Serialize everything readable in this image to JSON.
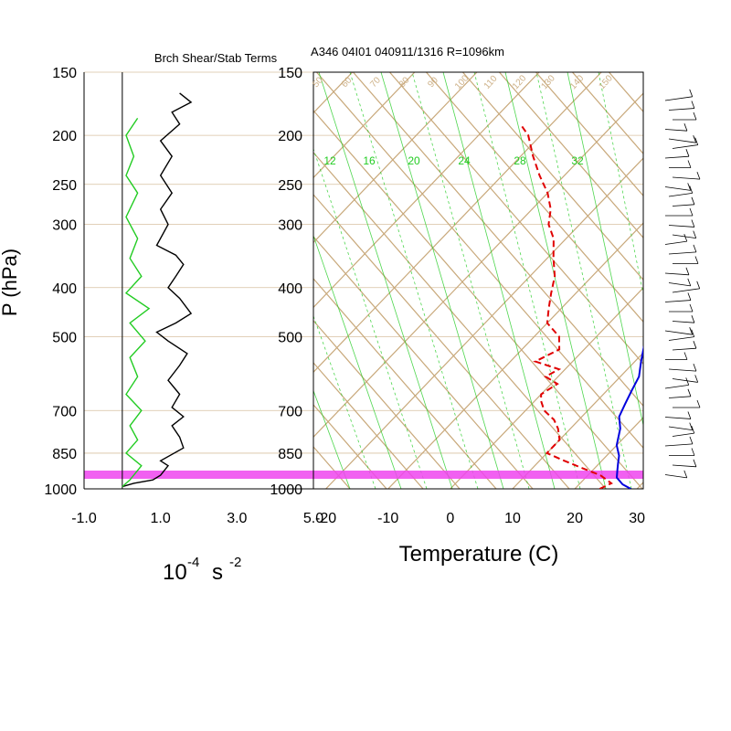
{
  "header": {
    "left_title": "Brch Shear/Stab Terms",
    "right_title": "A346 04I01 040911/1316 R=1096km"
  },
  "y_axis": {
    "label": "P (hPa)",
    "ticks": [
      150,
      200,
      250,
      300,
      400,
      500,
      700,
      850,
      1000
    ],
    "range": [
      1000,
      150
    ],
    "scale": "log"
  },
  "colors": {
    "grid": "#c8a87a",
    "temperature": "#e00000",
    "dewpoint_profile": "#0000dd",
    "mixing_ratio": "#22cc22",
    "bri_richardson": "#000000",
    "bri_shear": "#22cc22",
    "surface_band": "#ee44ee",
    "wind_barb": "#000000"
  },
  "left_panel": {
    "x_unit_label": "10",
    "x_unit_exp": "-4",
    "x_unit_s": "s",
    "x_unit_s_exp": "-2",
    "x_ticks": [
      "-1.0",
      "1.0",
      "3.0",
      "5.0"
    ]
  },
  "right_panel": {
    "x_axis_label": "Temperature (C)",
    "x_ticks": [
      "-20",
      "-10",
      "0",
      "10",
      "20",
      "30"
    ],
    "mixing_ratio_labels": [
      "12",
      "16",
      "20",
      "24",
      "28",
      "32"
    ],
    "isotherm_top_labels": [
      "50",
      "60",
      "70",
      "80",
      "90",
      "100",
      "110",
      "120",
      "130",
      "140",
      "150"
    ]
  },
  "chart_data": [
    {
      "type": "line",
      "title": "Brch Shear/Stab Terms",
      "xlabel": "10-4 s -2",
      "ylabel": "P (hPa)",
      "xlim": [
        -1.0,
        5.0
      ],
      "ylim": [
        1000,
        150
      ],
      "series": [
        {
          "points": [
            [
              0.0,
              990
            ],
            [
              0.3,
              975
            ],
            [
              0.8,
              960
            ],
            [
              1.0,
              940
            ],
            [
              1.2,
              900
            ],
            [
              1.0,
              880
            ],
            [
              1.6,
              830
            ],
            [
              1.5,
              790
            ],
            [
              1.3,
              750
            ],
            [
              1.6,
              720
            ],
            [
              1.3,
              690
            ],
            [
              1.5,
              650
            ],
            [
              1.2,
              610
            ],
            [
              1.5,
              570
            ],
            [
              1.7,
              540
            ],
            [
              1.2,
              510
            ],
            [
              0.9,
              490
            ],
            [
              1.4,
              470
            ],
            [
              1.8,
              450
            ],
            [
              1.5,
              420
            ],
            [
              1.2,
              400
            ],
            [
              1.4,
              380
            ],
            [
              1.6,
              360
            ],
            [
              1.4,
              345
            ],
            [
              0.9,
              330
            ],
            [
              1.2,
              300
            ],
            [
              1.0,
              280
            ],
            [
              1.3,
              260
            ],
            [
              1.0,
              240
            ],
            [
              1.3,
              220
            ],
            [
              1.0,
              205
            ],
            [
              1.5,
              190
            ],
            [
              1.3,
              180
            ],
            [
              1.8,
              172
            ],
            [
              1.5,
              165
            ]
          ]
        },
        {
          "points": [
            [
              0.0,
              990
            ],
            [
              0.2,
              960
            ],
            [
              0.5,
              900
            ],
            [
              0.1,
              850
            ],
            [
              0.4,
              800
            ],
            [
              0.2,
              750
            ],
            [
              0.5,
              700
            ],
            [
              0.1,
              650
            ],
            [
              0.4,
              600
            ],
            [
              0.2,
              550
            ],
            [
              0.6,
              510
            ],
            [
              0.2,
              470
            ],
            [
              0.7,
              440
            ],
            [
              0.1,
              410
            ],
            [
              0.5,
              380
            ],
            [
              0.2,
              350
            ],
            [
              0.4,
              320
            ],
            [
              0.1,
              290
            ],
            [
              0.4,
              260
            ],
            [
              0.1,
              240
            ],
            [
              0.3,
              220
            ],
            [
              0.1,
              200
            ],
            [
              0.4,
              185
            ]
          ]
        }
      ]
    },
    {
      "type": "line",
      "title": "A346 04I01 040911/1316 R=1096km",
      "xlabel": "Temperature (C)",
      "ylabel": "P (hPa)",
      "xlim": [
        -22,
        31
      ],
      "ylim": [
        1000,
        150
      ],
      "skew_per_decade_C": 78,
      "series": [
        {
          "points": [
            [
              29,
              1000
            ],
            [
              27,
              980
            ],
            [
              25,
              950
            ],
            [
              24,
              920
            ],
            [
              23,
              890
            ],
            [
              22,
              860
            ],
            [
              20,
              820
            ],
            [
              18,
              760
            ],
            [
              16,
              720
            ],
            [
              15,
              680
            ],
            [
              14,
              640
            ],
            [
              13,
              600
            ],
            [
              11,
              560
            ],
            [
              9,
              520
            ],
            [
              8,
              480
            ],
            [
              7,
              440
            ],
            [
              6,
              410
            ],
            [
              4,
              380
            ],
            [
              3,
              350
            ],
            [
              0,
              320
            ],
            [
              -2,
              290
            ],
            [
              -5,
              260
            ],
            [
              -8,
              240
            ],
            [
              -11,
              220
            ],
            [
              -14,
              200
            ],
            [
              -18,
              180
            ],
            [
              -20,
              170
            ]
          ]
        },
        {
          "points": [
            [
              24,
              1000
            ],
            [
              25,
              975
            ],
            [
              22,
              940
            ],
            [
              18,
              910
            ],
            [
              14,
              880
            ],
            [
              10,
              850
            ],
            [
              10,
              800
            ],
            [
              8,
              760
            ],
            [
              6,
              730
            ],
            [
              3,
              700
            ],
            [
              1,
              670
            ],
            [
              0,
              650
            ],
            [
              1,
              620
            ],
            [
              -2,
              600
            ],
            [
              -1,
              580
            ],
            [
              -6,
              560
            ],
            [
              -4,
              530
            ],
            [
              -6,
              500
            ],
            [
              -10,
              470
            ],
            [
              -12,
              440
            ],
            [
              -14,
              410
            ],
            [
              -16,
              380
            ],
            [
              -19,
              350
            ],
            [
              -22,
              320
            ],
            [
              -25,
              300
            ],
            [
              -27,
              280
            ],
            [
              -30,
              260
            ],
            [
              -34,
              240
            ],
            [
              -38,
              220
            ],
            [
              -42,
              200
            ],
            [
              -45,
              190
            ]
          ]
        }
      ]
    }
  ]
}
